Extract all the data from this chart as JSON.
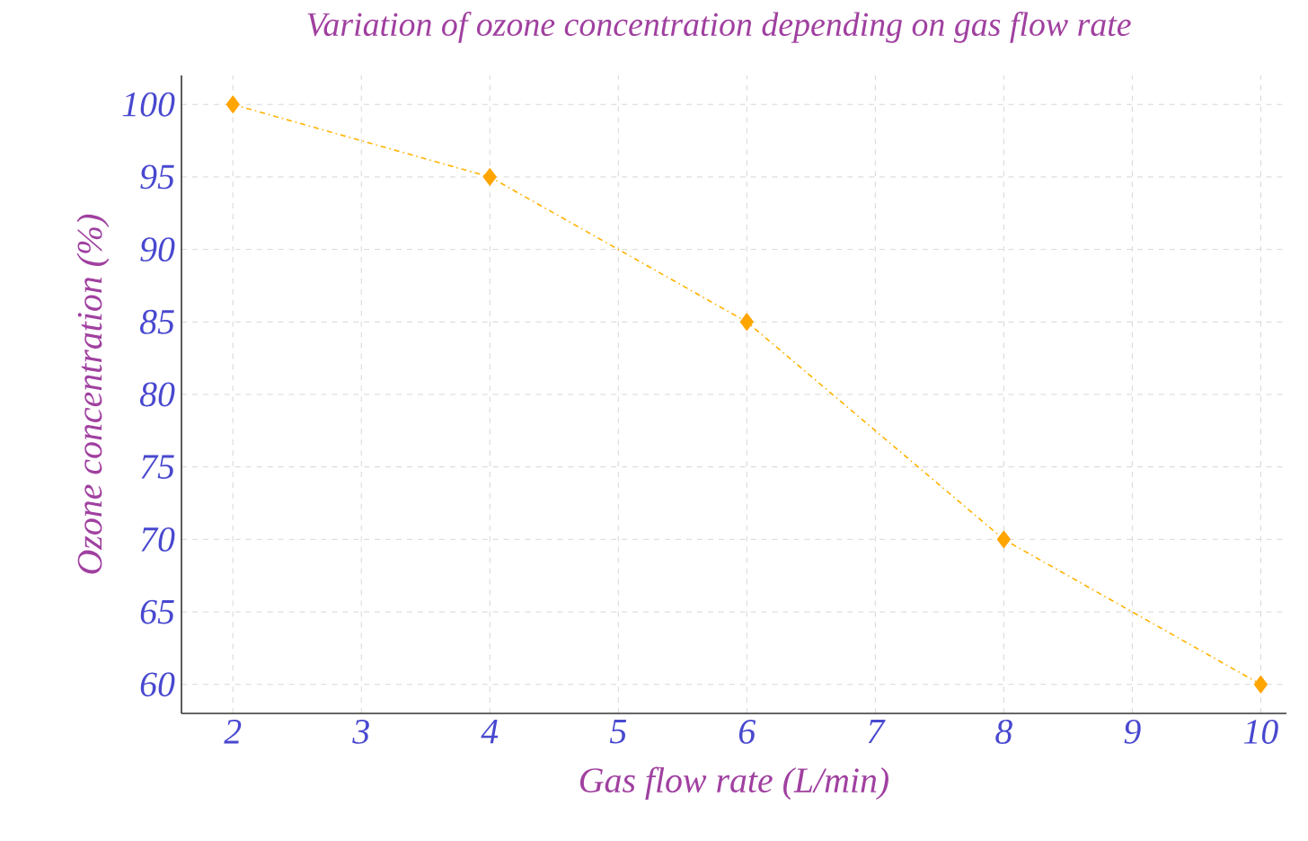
{
  "chart_data": {
    "type": "line",
    "title": "Variation of ozone concentration depending on gas flow rate",
    "xlabel": "Gas flow rate (L/min)",
    "ylabel": "Ozone concentration (%)",
    "x": [
      2,
      4,
      6,
      8,
      10
    ],
    "series": [
      {
        "color": "#ffa500",
        "values": [
          100,
          95,
          85,
          70,
          60
        ]
      }
    ],
    "xlim": [
      1.6,
      10.2
    ],
    "ylim": [
      58,
      102
    ],
    "xticks": [
      2,
      3,
      4,
      5,
      6,
      7,
      8,
      9,
      10
    ],
    "yticks": [
      60,
      65,
      70,
      75,
      80,
      85,
      90,
      95,
      100
    ],
    "grid": true,
    "marker": "diamond",
    "line_style": "dashed"
  }
}
